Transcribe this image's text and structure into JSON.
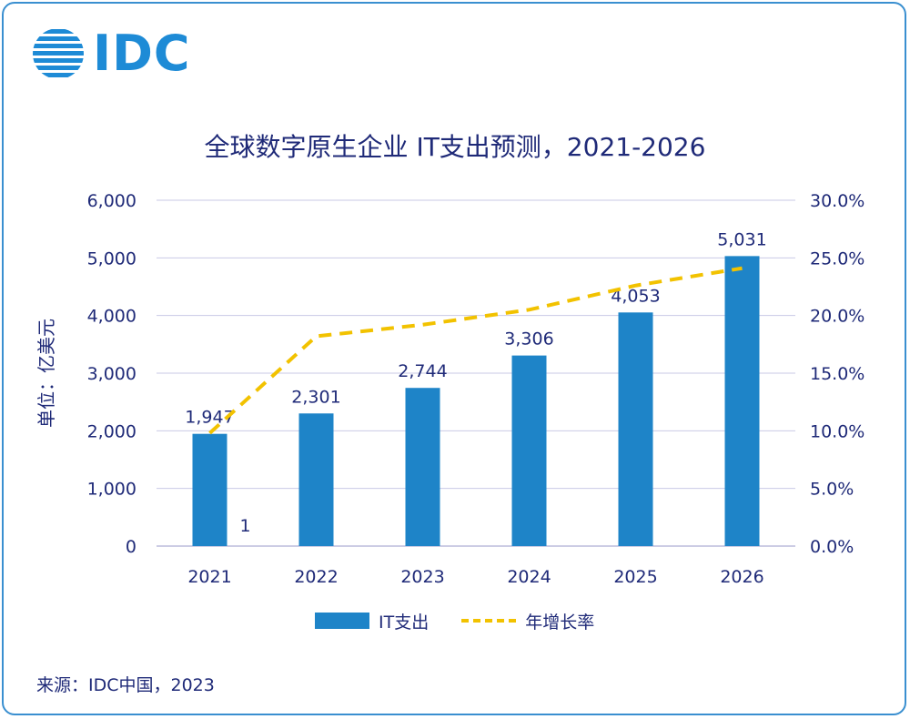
{
  "logo": {
    "text": "IDC"
  },
  "title": "全球数字原生企业 IT支出预测，2021-2026",
  "source": "来源：IDC中国，2023",
  "colors": {
    "bar": "#1e84c8",
    "line": "#f2c200",
    "text": "#1f2a78",
    "grid": "#c9c9e6",
    "frame": "#3a8fd0"
  },
  "chart_data": {
    "type": "bar+line",
    "categories": [
      "2021",
      "2022",
      "2023",
      "2024",
      "2025",
      "2026"
    ],
    "series": [
      {
        "name": "IT支出",
        "type": "bar",
        "axis": "left",
        "values": [
          1947,
          2301,
          2744,
          3306,
          4053,
          5031
        ],
        "labels": [
          "1,947",
          "2,301",
          "2,744",
          "3,306",
          "4,053",
          "5,031"
        ]
      },
      {
        "name": "年增长率",
        "type": "line",
        "style": "dashed",
        "axis": "right",
        "values": [
          9.8,
          18.2,
          19.2,
          20.5,
          22.6,
          24.1
        ]
      }
    ],
    "annotations": [
      {
        "text": "1",
        "category": "2021"
      }
    ],
    "ylabel": "单位：亿美元",
    "ylim": [
      0,
      6000
    ],
    "yticks": [
      "0",
      "1,000",
      "2,000",
      "3,000",
      "4,000",
      "5,000",
      "6,000"
    ],
    "y2lim": [
      0,
      30
    ],
    "y2ticks": [
      "0.0%",
      "5.0%",
      "10.0%",
      "15.0%",
      "20.0%",
      "25.0%",
      "30.0%"
    ],
    "grid": true,
    "legend": "bottom"
  }
}
